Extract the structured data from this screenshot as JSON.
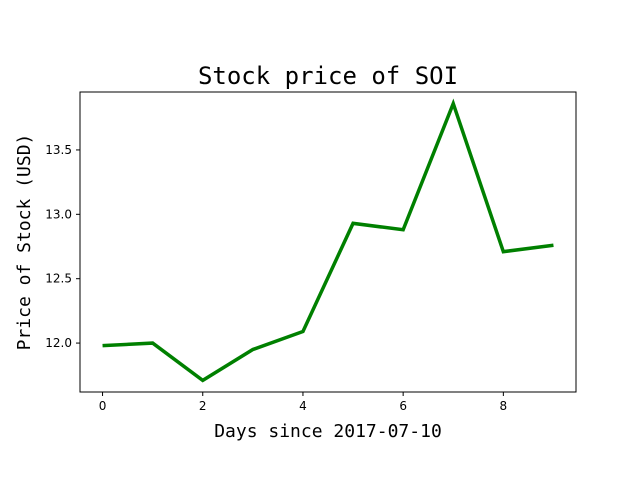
{
  "chart_data": {
    "type": "line",
    "title": "Stock price of SOI",
    "xlabel": "Days since 2017-07-10",
    "ylabel": "Price of Stock (USD)",
    "x": [
      0,
      1,
      2,
      3,
      4,
      5,
      6,
      7,
      8,
      9
    ],
    "series": [
      {
        "values": [
          11.98,
          12.0,
          11.71,
          11.95,
          12.09,
          12.93,
          12.88,
          13.86,
          12.71,
          12.76
        ],
        "color": "#008000"
      }
    ],
    "xlim": [
      -0.45,
      9.45
    ],
    "ylim": [
      11.62,
      13.95
    ],
    "xticks": [
      0,
      2,
      4,
      6,
      8
    ],
    "xtick_labels": [
      "0",
      "2",
      "4",
      "6",
      "8"
    ],
    "yticks": [
      12.0,
      12.5,
      13.0,
      13.5
    ],
    "ytick_labels": [
      "12.0",
      "12.5",
      "13.0",
      "13.5"
    ],
    "grid": false,
    "legend": "none"
  }
}
